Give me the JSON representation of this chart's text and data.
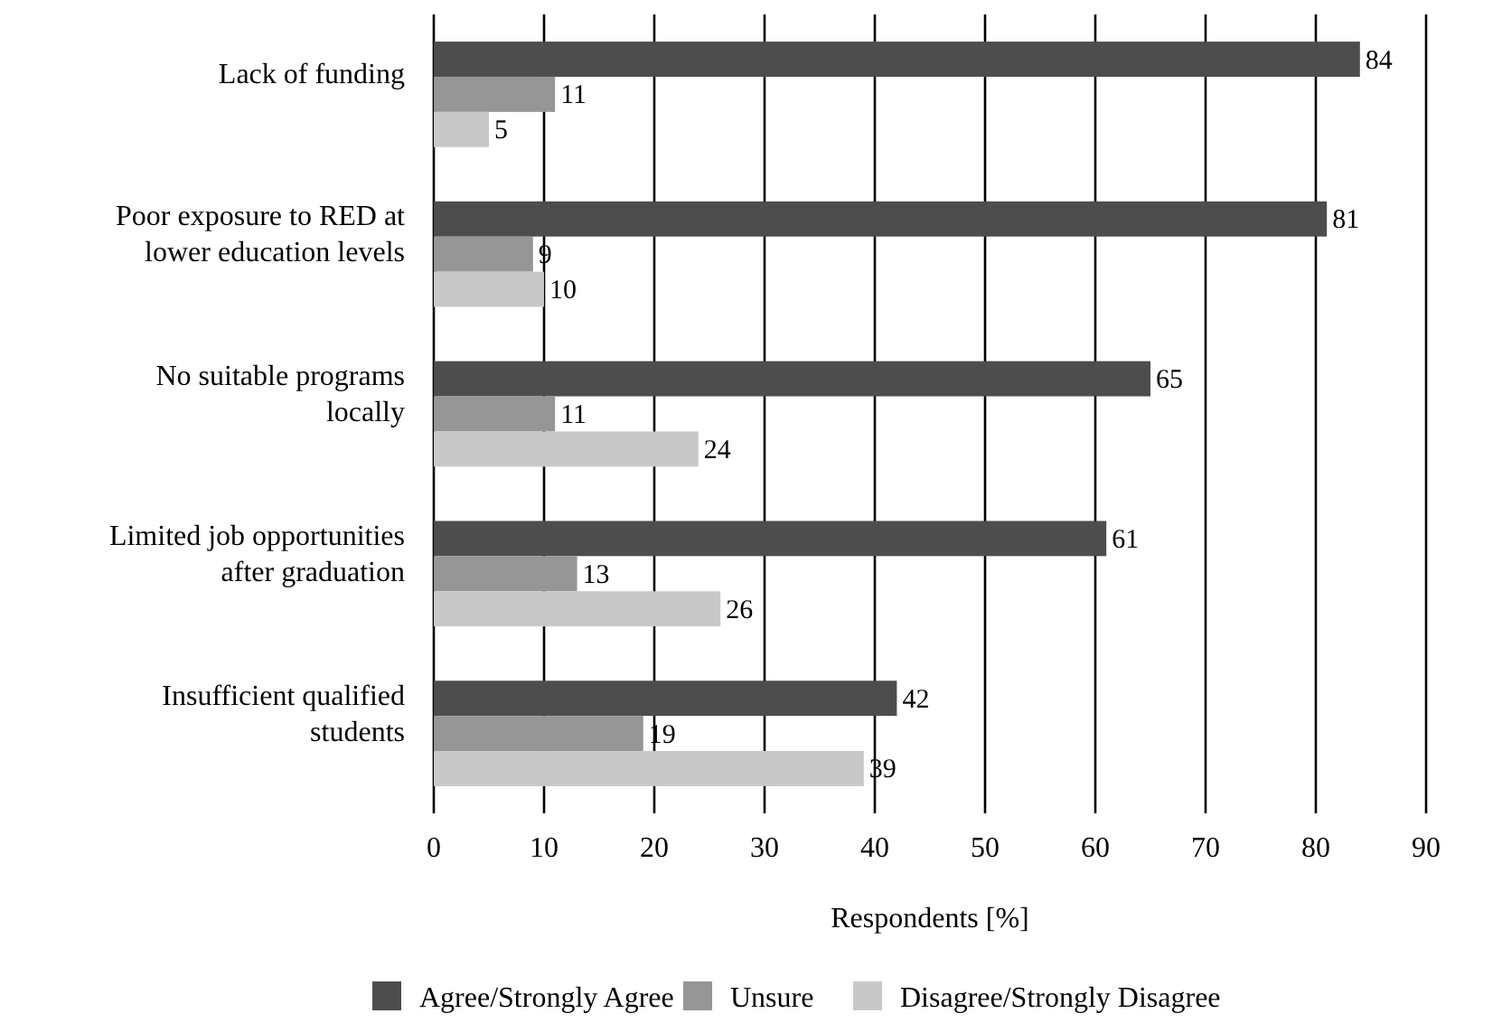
{
  "chart_data": {
    "type": "bar",
    "orientation": "horizontal",
    "xlabel": "Respondents [%]",
    "categories": [
      "Lack of funding",
      "Poor exposure to RED at lower education levels",
      "No suitable programs locally",
      "Limited job opportunities after graduation",
      "Insufficient qualified students"
    ],
    "series": [
      {
        "name": "Agree/Strongly Agree",
        "color": "#4d4d4d",
        "values": [
          84,
          81,
          65,
          61,
          42
        ]
      },
      {
        "name": "Unsure",
        "color": "#969696",
        "values": [
          11,
          9,
          11,
          13,
          19
        ]
      },
      {
        "name": "Disagree/Strongly Disagree",
        "color": "#c8c8c8",
        "values": [
          5,
          10,
          24,
          26,
          39
        ]
      }
    ],
    "xlim": [
      0,
      90
    ],
    "xticks": [
      0,
      10,
      20,
      30,
      40,
      50,
      60,
      70,
      80,
      90
    ],
    "grid": "x",
    "legend": "bottom",
    "data_labels": true
  }
}
